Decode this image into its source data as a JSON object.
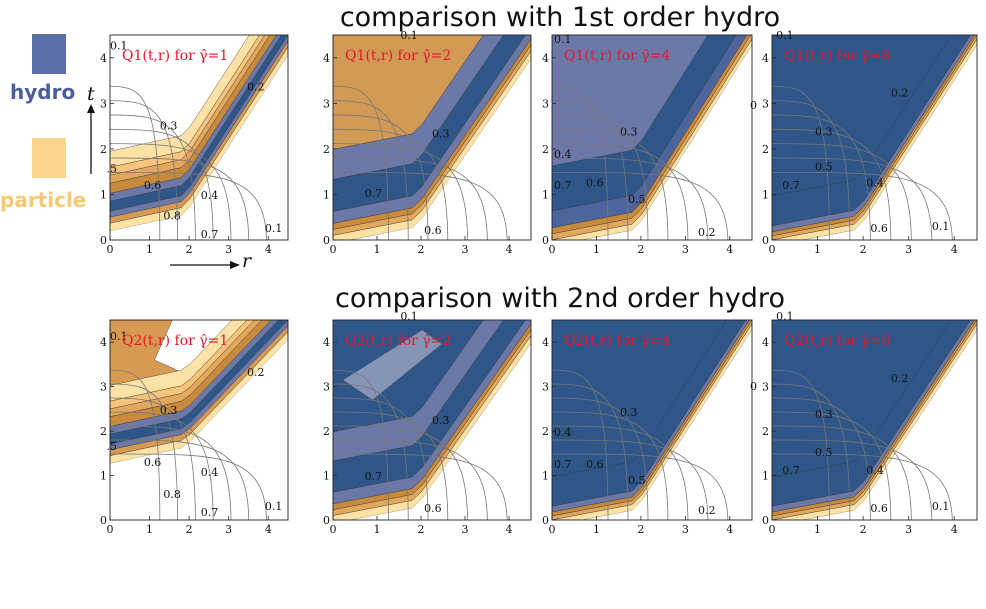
{
  "titles": {
    "row1": "comparison with 1st order hydro",
    "row2": "comparison with 2nd order hydro"
  },
  "legend": {
    "hydro": {
      "label": "hydro",
      "color": "#5a6fa8"
    },
    "particle": {
      "label": "particle",
      "color": "#fbd48c"
    }
  },
  "axes": {
    "t": "t",
    "r": "r"
  },
  "colors": {
    "hydro_deep": "#2e5689",
    "hydro_light": "#6b78a8",
    "particle_deep": "#c88a3c",
    "particle_light": "#fde2a6",
    "title_red": "#e8162c"
  },
  "chart_data": [
    {
      "type": "heatmap",
      "row": 1,
      "title": "Q1(t,r) for γ̂=1",
      "xlim": [
        0,
        4.5
      ],
      "ylim": [
        0,
        4.5
      ],
      "xticks": [
        "0",
        "1",
        "2",
        "3",
        "4"
      ],
      "yticks": [
        "0",
        "1",
        "2",
        "3",
        "4"
      ],
      "contour_labels": [
        "0.1",
        "0.2",
        "0.3",
        ".5",
        "0.6",
        "0.4",
        "0.8",
        "0.7",
        "0.1"
      ]
    },
    {
      "type": "heatmap",
      "row": 1,
      "title": "Q1(t,r) for γ̂=2",
      "xlim": [
        0,
        4.5
      ],
      "ylim": [
        0,
        4.5
      ],
      "xticks": [
        "0",
        "1",
        "2",
        "3",
        "4"
      ],
      "yticks": [
        "0",
        "1",
        "2",
        "3",
        "4"
      ],
      "contour_labels": [
        "0.1",
        "0.3",
        "0.7",
        "0.6"
      ]
    },
    {
      "type": "heatmap",
      "row": 1,
      "title": "Q1(t,r) for γ̂=4",
      "xlim": [
        0,
        4.5
      ],
      "ylim": [
        0,
        4.5
      ],
      "xticks": [
        "0",
        "1",
        "2",
        "3",
        "4"
      ],
      "yticks": [
        "0",
        "1",
        "2",
        "3",
        "4"
      ],
      "contour_labels": [
        "0.1",
        "0.3",
        "0.4",
        "0.7",
        "0.6",
        "0.5",
        "0.2",
        "0"
      ]
    },
    {
      "type": "heatmap",
      "row": 1,
      "title": "Q1(t,r) for γ̂=8",
      "xlim": [
        0,
        4.5
      ],
      "ylim": [
        0,
        4.5
      ],
      "xticks": [
        "0",
        "1",
        "2",
        "3",
        "4"
      ],
      "yticks": [
        "0",
        "1",
        "2",
        "3",
        "4"
      ],
      "contour_labels": [
        "0.1",
        "0.2",
        "0.3",
        "0.5",
        "0.7",
        "0.4",
        "0.6",
        "0.1"
      ]
    },
    {
      "type": "heatmap",
      "row": 2,
      "title": "Q2(t,r) for γ̂=1",
      "xlim": [
        0,
        4.5
      ],
      "ylim": [
        0,
        4.5
      ],
      "xticks": [
        "0",
        "1",
        "2",
        "3",
        "4"
      ],
      "yticks": [
        "0",
        "1",
        "2",
        "3",
        "4"
      ],
      "contour_labels": [
        "0.1",
        "0.2",
        "0.3",
        ".5",
        "0.6",
        "0.4",
        "0.8",
        "0.7",
        "0.1"
      ]
    },
    {
      "type": "heatmap",
      "row": 2,
      "title": "Q2(t,r) for γ̂=2",
      "xlim": [
        0,
        4.5
      ],
      "ylim": [
        0,
        4.5
      ],
      "xticks": [
        "0",
        "1",
        "2",
        "3",
        "4"
      ],
      "yticks": [
        "0",
        "1",
        "2",
        "3",
        "4"
      ],
      "contour_labels": [
        "0.1",
        "0.3",
        "0.7",
        "0.6"
      ]
    },
    {
      "type": "heatmap",
      "row": 2,
      "title": "Q2(t,r) for γ̂=4",
      "xlim": [
        0,
        4.5
      ],
      "ylim": [
        0,
        4.5
      ],
      "xticks": [
        "0",
        "1",
        "2",
        "3",
        "4"
      ],
      "yticks": [
        "0",
        "1",
        "2",
        "3",
        "4"
      ],
      "contour_labels": [
        "0.3",
        "0.4",
        "0.7",
        "0.6",
        "0.5",
        "0.2",
        "0"
      ]
    },
    {
      "type": "heatmap",
      "row": 2,
      "title": "Q2(t,r) for γ̂=8",
      "xlim": [
        0,
        4.5
      ],
      "ylim": [
        0,
        4.5
      ],
      "xticks": [
        "0",
        "1",
        "2",
        "3",
        "4"
      ],
      "yticks": [
        "0",
        "1",
        "2",
        "3",
        "4"
      ],
      "contour_labels": [
        "0.1",
        "0.2",
        "0.3",
        "0.5",
        "0.7",
        "0.4",
        "0.6",
        "0.1"
      ]
    }
  ]
}
